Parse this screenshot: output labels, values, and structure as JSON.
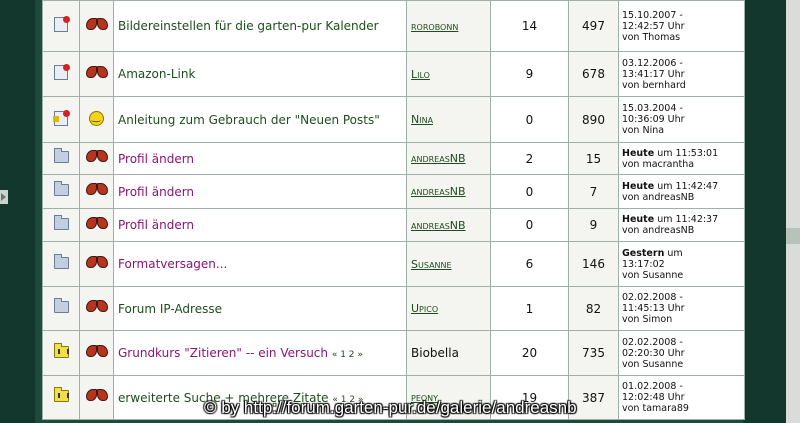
{
  "rows": [
    {
      "status_icon": "note-icon",
      "type_icon": "butterfly-icon",
      "title": "Bildereinstellen für die garten-pur Kalender",
      "title_color": "green",
      "pages": "",
      "author": "rorobonn",
      "replies": "14",
      "views": "497",
      "last_date": "15.10.2007 -",
      "last_time": "12:42:57 Uhr",
      "last_by": "von Thomas",
      "last_day": ""
    },
    {
      "status_icon": "note-icon",
      "type_icon": "butterfly-icon",
      "title": "Amazon-Link",
      "title_color": "green",
      "pages": "",
      "author": "Lilo",
      "replies": "9",
      "views": "678",
      "last_date": "03.12.2006 -",
      "last_time": "13:41:17 Uhr",
      "last_by": "von bernhard",
      "last_day": ""
    },
    {
      "status_icon": "sticky-note-icon",
      "type_icon": "smiley-icon",
      "title": "Anleitung zum Gebrauch der \"Neuen Posts\"",
      "title_color": "green",
      "pages": "",
      "author": "Nina",
      "replies": "0",
      "views": "890",
      "last_date": "15.03.2004 -",
      "last_time": "10:36:09 Uhr",
      "last_by": "von Nina",
      "last_day": ""
    },
    {
      "status_icon": "folder-icon",
      "type_icon": "butterfly-icon",
      "title": "Profil ändern",
      "title_color": "purple",
      "pages": "",
      "author": "andreasNB",
      "replies": "2",
      "views": "15",
      "last_day": "Heute",
      "last_date": "um 11:53:01",
      "last_time": "",
      "last_by": "von macrantha"
    },
    {
      "status_icon": "folder-icon",
      "type_icon": "butterfly-icon",
      "title": "Profil ändern",
      "title_color": "purple",
      "pages": "",
      "author": "andreasNB",
      "replies": "0",
      "views": "7",
      "last_day": "Heute",
      "last_date": "um 11:42:47",
      "last_time": "",
      "last_by": "von andreasNB"
    },
    {
      "status_icon": "folder-icon",
      "type_icon": "butterfly-icon",
      "title": "Profil ändern",
      "title_color": "purple",
      "pages": "",
      "author": "andreasNB",
      "replies": "0",
      "views": "9",
      "last_day": "Heute",
      "last_date": "um 11:42:37",
      "last_time": "",
      "last_by": "von andreasNB"
    },
    {
      "status_icon": "folder-icon",
      "type_icon": "butterfly-icon",
      "title": "Formatversagen...",
      "title_color": "purple",
      "pages": "",
      "author": "Susanne",
      "replies": "6",
      "views": "146",
      "last_day": "Gestern",
      "last_date": "um",
      "last_time": "13:17:02",
      "last_by": "von Susanne"
    },
    {
      "status_icon": "folder-icon",
      "type_icon": "butterfly-icon",
      "title": "Forum IP-Adresse",
      "title_color": "green",
      "pages": "",
      "author": "Upico",
      "replies": "1",
      "views": "82",
      "last_date": "02.02.2008 -",
      "last_time": "11:45:13 Uhr",
      "last_by": "von Simon",
      "last_day": ""
    },
    {
      "status_icon": "hot-folder-icon",
      "type_icon": "butterfly-icon",
      "title": "Grundkurs \"Zitieren\" -- ein Versuch",
      "title_color": "purple",
      "pages": "« 1 2 »",
      "author": "Biobella",
      "replies": "20",
      "views": "735",
      "last_date": "02.02.2008 -",
      "last_time": "02:20:30 Uhr",
      "last_by": "von Susanne",
      "last_day": ""
    },
    {
      "status_icon": "hot-folder-icon",
      "type_icon": "butterfly-icon",
      "title": "erweiterte Suche + mehrere Zitate",
      "title_color": "green",
      "pages": "« 1 2 »",
      "author": "peony",
      "replies": "19",
      "views": "387",
      "last_date": "01.02.2008 -",
      "last_time": "12:02:48 Uhr",
      "last_by": "von tamara89",
      "last_day": ""
    }
  ],
  "watermark": "© by http://forum.garten-pur.de/galerie/andreasnb",
  "colors": {
    "frame": "#14372d",
    "link_green": "#1d4d1d",
    "link_visited": "#8c1473",
    "border": "#9fb0a6"
  }
}
